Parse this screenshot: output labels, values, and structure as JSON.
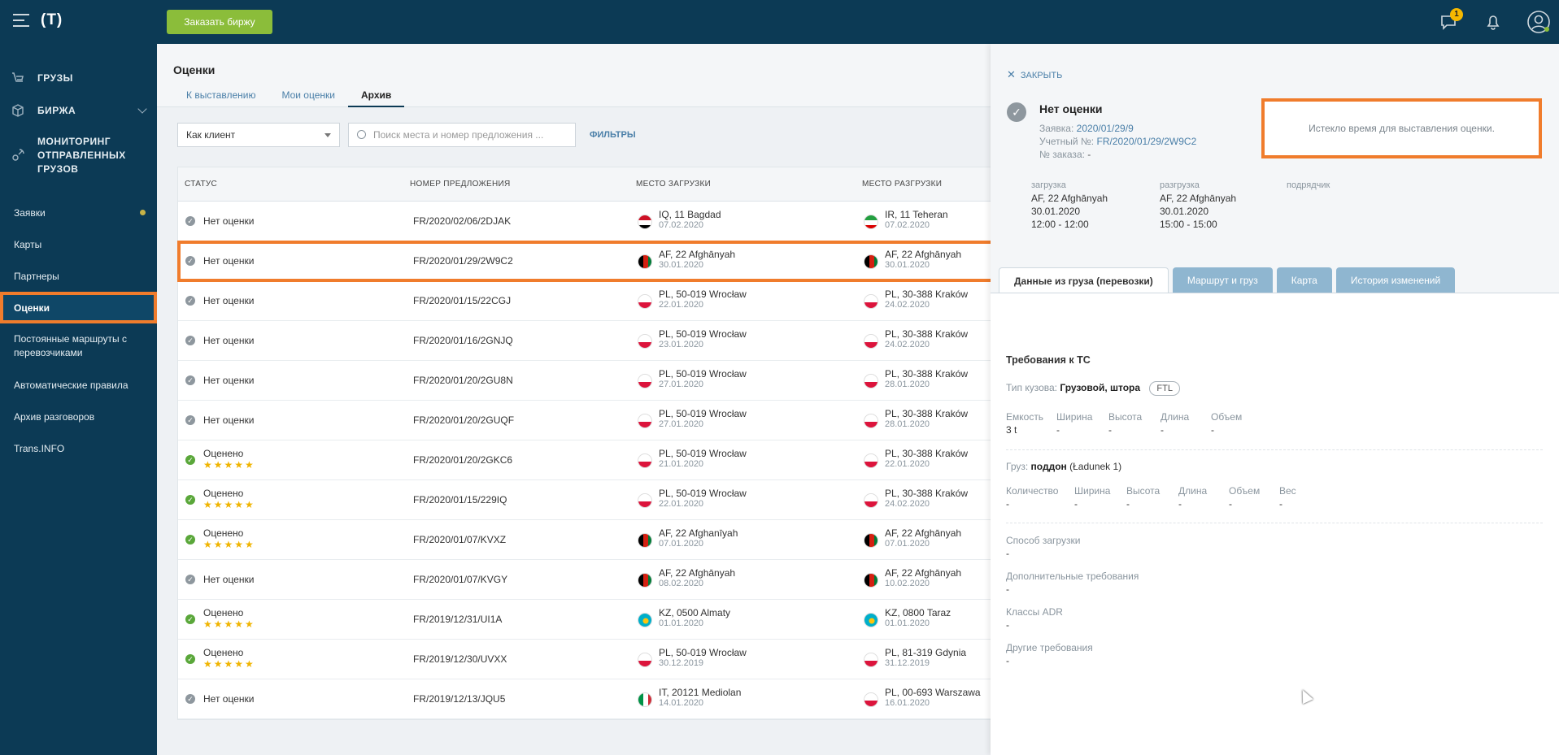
{
  "topbar": {
    "logo": "(T)",
    "order_button": "Заказать биржу",
    "messages_badge": "1"
  },
  "sidebar": {
    "main": [
      {
        "label": "ГРУЗЫ",
        "icon": "truck-icon"
      },
      {
        "label": "БИРЖА",
        "icon": "cube-icon"
      },
      {
        "label": "МОНИТОРИНГ ОТПРАВЛЕННЫХ ГРУЗОВ",
        "icon": "satellite-icon"
      }
    ],
    "items": [
      {
        "label": "Заявки"
      },
      {
        "label": "Карты"
      },
      {
        "label": "Партнеры"
      },
      {
        "label": "Оценки"
      },
      {
        "label": "Постоянные маршруты с перевозчиками"
      },
      {
        "label": "Автоматические правила"
      },
      {
        "label": "Архив разговоров"
      },
      {
        "label": "Trans.INFO"
      }
    ]
  },
  "main": {
    "title": "Оценки",
    "tabs": [
      "К выставлению",
      "Мои оценки",
      "Архив"
    ],
    "select_value": "Как клиент",
    "search_placeholder": "Поиск места и номер предложения ...",
    "filters_link": "ФИЛЬТРЫ",
    "columns": [
      "СТАТУС",
      "НОМЕР ПРЕДЛОЖЕНИЯ",
      "МЕСТО ЗАГРУЗКИ",
      "МЕСТО РАЗГРУЗКИ"
    ],
    "rows": [
      {
        "status": "Нет оценки",
        "rated": false,
        "number": "FR/2020/02/06/2DJAK",
        "load": "IQ, 11 Bagdad",
        "load_date": "07.02.2020",
        "load_flag": "iq",
        "unload": "IR, 11 Teheran",
        "unload_date": "07.02.2020",
        "unload_flag": "ir"
      },
      {
        "status": "Нет оценки",
        "rated": false,
        "number": "FR/2020/01/29/2W9C2",
        "load": "AF, 22 Afghānyah",
        "load_date": "30.01.2020",
        "load_flag": "af",
        "unload": "AF, 22 Afghānyah",
        "unload_date": "30.01.2020",
        "unload_flag": "af"
      },
      {
        "status": "Нет оценки",
        "rated": false,
        "number": "FR/2020/01/15/22CGJ",
        "load": "PL, 50-019 Wrocław",
        "load_date": "22.01.2020",
        "load_flag": "pl",
        "unload": "PL, 30-388 Kraków",
        "unload_date": "24.02.2020",
        "unload_flag": "pl"
      },
      {
        "status": "Нет оценки",
        "rated": false,
        "number": "FR/2020/01/16/2GNJQ",
        "load": "PL, 50-019 Wrocław",
        "load_date": "23.01.2020",
        "load_flag": "pl",
        "unload": "PL, 30-388 Kraków",
        "unload_date": "24.02.2020",
        "unload_flag": "pl"
      },
      {
        "status": "Нет оценки",
        "rated": false,
        "number": "FR/2020/01/20/2GU8N",
        "load": "PL, 50-019 Wrocław",
        "load_date": "27.01.2020",
        "load_flag": "pl",
        "unload": "PL, 30-388 Kraków",
        "unload_date": "28.01.2020",
        "unload_flag": "pl"
      },
      {
        "status": "Нет оценки",
        "rated": false,
        "number": "FR/2020/01/20/2GUQF",
        "load": "PL, 50-019 Wrocław",
        "load_date": "27.01.2020",
        "load_flag": "pl",
        "unload": "PL, 30-388 Kraków",
        "unload_date": "28.01.2020",
        "unload_flag": "pl"
      },
      {
        "status": "Оценено",
        "rated": true,
        "number": "FR/2020/01/20/2GKC6",
        "load": "PL, 50-019 Wrocław",
        "load_date": "21.01.2020",
        "load_flag": "pl",
        "unload": "PL, 30-388 Kraków",
        "unload_date": "22.01.2020",
        "unload_flag": "pl"
      },
      {
        "status": "Оценено",
        "rated": true,
        "number": "FR/2020/01/15/229IQ",
        "load": "PL, 50-019 Wrocław",
        "load_date": "22.01.2020",
        "load_flag": "pl",
        "unload": "PL, 30-388 Kraków",
        "unload_date": "24.02.2020",
        "unload_flag": "pl"
      },
      {
        "status": "Оценено",
        "rated": true,
        "number": "FR/2020/01/07/KVXZ",
        "load": "AF, 22 Afghanīyah",
        "load_date": "07.01.2020",
        "load_flag": "af",
        "unload": "AF, 22 Afghānyah",
        "unload_date": "07.01.2020",
        "unload_flag": "af"
      },
      {
        "status": "Нет оценки",
        "rated": false,
        "number": "FR/2020/01/07/KVGY",
        "load": "AF, 22 Afghānyah",
        "load_date": "08.02.2020",
        "load_flag": "af",
        "unload": "AF, 22 Afghānyah",
        "unload_date": "10.02.2020",
        "unload_flag": "af"
      },
      {
        "status": "Оценено",
        "rated": true,
        "number": "FR/2019/12/31/UI1A",
        "load": "KZ, 0500 Almaty",
        "load_date": "01.01.2020",
        "load_flag": "kz",
        "unload": "KZ, 0800 Taraz",
        "unload_date": "01.01.2020",
        "unload_flag": "kz"
      },
      {
        "status": "Оценено",
        "rated": true,
        "number": "FR/2019/12/30/UVXX",
        "load": "PL, 50-019 Wrocław",
        "load_date": "30.12.2019",
        "load_flag": "pl",
        "unload": "PL, 81-319 Gdynia",
        "unload_date": "31.12.2019",
        "unload_flag": "pl"
      },
      {
        "status": "Нет оценки",
        "rated": false,
        "number": "FR/2019/12/13/JQU5",
        "load": "IT, 20121 Mediolan",
        "load_date": "14.01.2020",
        "load_flag": "it",
        "unload": "PL, 00-693 Warszawa",
        "unload_date": "16.01.2020",
        "unload_flag": "pl"
      }
    ]
  },
  "panel": {
    "close": "ЗАКРЫТЬ",
    "title": "Нет оценки",
    "request_label": "Заявка:",
    "request_value": "2020/01/29/9",
    "account_label": "Учетный №:",
    "account_value": "FR/2020/01/29/2W9C2",
    "order_label": "№ заказа:",
    "order_value": "-",
    "expired": "Истекло время для выставления оценки.",
    "loading_label": "загрузка",
    "loading": [
      "AF, 22 Afghānyah",
      "30.01.2020",
      "12:00 - 12:00"
    ],
    "unloading_label": "разгрузка",
    "unloading": [
      "AF, 22 Afghānyah",
      "30.01.2020",
      "15:00 - 15:00"
    ],
    "contractor_label": "подрядчик",
    "tabs": [
      "Данные из груза (перевозки)",
      "Маршрут и груз",
      "Карта",
      "История изменений"
    ],
    "req_title": "Требования к ТС",
    "body_type_label": "Тип кузова:",
    "body_type_value": "Грузовой, штора",
    "ftl": "FTL",
    "dims1": {
      "labels": [
        "Емкость",
        "Ширина",
        "Высота",
        "Длина",
        "Объем"
      ],
      "values": [
        "3 t",
        "-",
        "-",
        "-",
        "-"
      ]
    },
    "cargo_label": "Груз:",
    "cargo_value": "поддон",
    "cargo_note": "(Ładunek 1)",
    "dims2": {
      "labels": [
        "Количество",
        "Ширина",
        "Высота",
        "Длина",
        "Объем",
        "Вес"
      ],
      "values": [
        "-",
        "-",
        "-",
        "-",
        "-",
        "-"
      ]
    },
    "extra": [
      {
        "label": "Способ загрузки",
        "value": "-"
      },
      {
        "label": "Дополнительные требования",
        "value": "-"
      },
      {
        "label": "Классы ADR",
        "value": "-"
      },
      {
        "label": "Другие требования",
        "value": "-"
      }
    ]
  }
}
